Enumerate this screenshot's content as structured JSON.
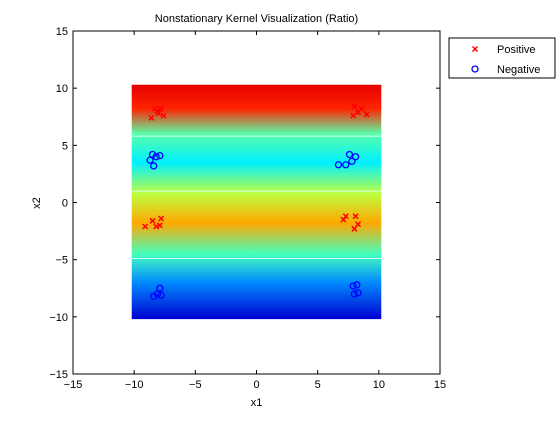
{
  "chart_data": {
    "type": "scatter",
    "title": "Nonstationary Kernel Visualization (Ratio)",
    "xlabel": "x1",
    "ylabel": "x2",
    "xlim": [
      -15,
      15
    ],
    "ylim": [
      -15,
      15
    ],
    "xticks": [
      -15,
      -10,
      -5,
      0,
      5,
      10,
      15
    ],
    "yticks": [
      -15,
      -10,
      -5,
      0,
      5,
      10,
      15
    ],
    "xtick_labels": [
      "−15",
      "−10",
      "−5",
      "0",
      "5",
      "10",
      "15"
    ],
    "ytick_labels": [
      "−15",
      "−10",
      "−5",
      "0",
      "5",
      "10",
      "15"
    ],
    "heatmap": {
      "colormap": "jet",
      "extent_x": [
        -10.2,
        10.2
      ],
      "extent_y": [
        -10.2,
        10.3
      ],
      "contour_y": [
        5.8,
        1.0,
        -4.9
      ],
      "band_profile": [
        {
          "y": 10.3,
          "level": 0.9
        },
        {
          "y": 8.2,
          "level": 0.84
        },
        {
          "y": 6.0,
          "level": 0.46
        },
        {
          "y": 3.5,
          "level": 0.36
        },
        {
          "y": 0.8,
          "level": 0.56
        },
        {
          "y": -1.8,
          "level": 0.71
        },
        {
          "y": -4.5,
          "level": 0.44
        },
        {
          "y": -7.0,
          "level": 0.26
        },
        {
          "y": -10.2,
          "level": 0.08
        }
      ]
    },
    "series": [
      {
        "name": "Positive",
        "marker": "x",
        "color": "#ff0000",
        "points": [
          [
            -8.6,
            7.4
          ],
          [
            -8.3,
            8.2
          ],
          [
            -8.0,
            7.8
          ],
          [
            -7.8,
            8.2
          ],
          [
            -8.1,
            8.0
          ],
          [
            -7.6,
            7.6
          ],
          [
            8.0,
            8.4
          ],
          [
            7.9,
            7.6
          ],
          [
            8.3,
            7.9
          ],
          [
            8.6,
            8.2
          ],
          [
            9.0,
            7.7
          ],
          [
            -9.1,
            -2.1
          ],
          [
            -8.5,
            -1.6
          ],
          [
            -8.2,
            -2.1
          ],
          [
            -7.8,
            -1.4
          ],
          [
            -7.9,
            -2.0
          ],
          [
            7.1,
            -1.5
          ],
          [
            7.3,
            -1.2
          ],
          [
            8.1,
            -1.2
          ],
          [
            8.0,
            -2.3
          ],
          [
            8.3,
            -1.9
          ]
        ]
      },
      {
        "name": "Negative",
        "marker": "o",
        "color": "#0000ff",
        "points": [
          [
            -8.7,
            3.7
          ],
          [
            -8.5,
            4.2
          ],
          [
            -8.4,
            3.2
          ],
          [
            -8.2,
            4.0
          ],
          [
            -7.9,
            4.1
          ],
          [
            7.3,
            3.3
          ],
          [
            7.6,
            4.2
          ],
          [
            7.8,
            3.6
          ],
          [
            8.1,
            4.0
          ],
          [
            6.7,
            3.3
          ],
          [
            -8.4,
            -8.2
          ],
          [
            -8.1,
            -8.0
          ],
          [
            -7.9,
            -7.5
          ],
          [
            -7.8,
            -8.1
          ],
          [
            7.9,
            -7.3
          ],
          [
            8.2,
            -7.2
          ],
          [
            8.0,
            -8.0
          ],
          [
            8.3,
            -7.9
          ]
        ]
      }
    ],
    "legend": {
      "placement": "top-right outside",
      "entries": [
        "Positive",
        "Negative"
      ]
    }
  }
}
